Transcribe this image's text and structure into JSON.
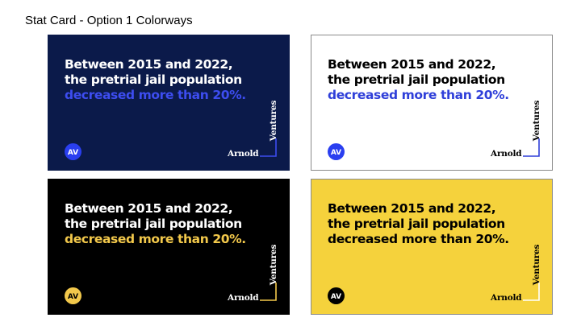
{
  "page": {
    "title": "Stat Card - Option 1 Colorways"
  },
  "cards": [
    {
      "colorway": "navy",
      "background": "#0b1a4a",
      "border": "#0b1a4a",
      "text_color": "#ffffff",
      "highlight_color": "#3d4df0",
      "bracket_color": "#3d4df0",
      "logo_circle": "#2a3ff0",
      "logo_glyph": "#ffffff",
      "headline_line1": "Between 2015 and 2022,",
      "headline_line2": "the pretrial jail population",
      "headline_highlight": "decreased more than 20%.",
      "logo_text": "AV",
      "wordmark_arnold": "Arnold",
      "wordmark_ventures": "Ventures"
    },
    {
      "colorway": "white",
      "background": "#ffffff",
      "border": "#8a8a8a",
      "text_color": "#000000",
      "highlight_color": "#2f3fd9",
      "bracket_color": "#2f3fd9",
      "logo_circle": "#2a3ff0",
      "logo_glyph": "#ffffff",
      "headline_line1": "Between 2015 and 2022,",
      "headline_line2": "the pretrial jail population",
      "headline_highlight": "decreased more than 20%.",
      "logo_text": "AV",
      "wordmark_arnold": "Arnold",
      "wordmark_ventures": "Ventures"
    },
    {
      "colorway": "black",
      "background": "#000000",
      "border": "#000000",
      "text_color": "#ffffff",
      "highlight_color": "#f2c84b",
      "bracket_color": "#f2c84b",
      "logo_circle": "#f2c84b",
      "logo_glyph": "#000000",
      "headline_line1": "Between 2015 and 2022,",
      "headline_line2": "the pretrial jail population",
      "headline_highlight": "decreased more than 20%.",
      "logo_text": "AV",
      "wordmark_arnold": "Arnold",
      "wordmark_ventures": "Ventures"
    },
    {
      "colorway": "yellow",
      "background": "#f5d23c",
      "border": "#8a8a8a",
      "text_color": "#000000",
      "highlight_color": "#000000",
      "bracket_color": "#ffffff",
      "logo_circle": "#000000",
      "logo_glyph": "#ffffff",
      "headline_line1": "Between 2015 and 2022,",
      "headline_line2": "the pretrial jail population",
      "headline_highlight": "decreased more than 20%.",
      "logo_text": "AV",
      "wordmark_arnold": "Arnold",
      "wordmark_ventures": "Ventures"
    }
  ]
}
